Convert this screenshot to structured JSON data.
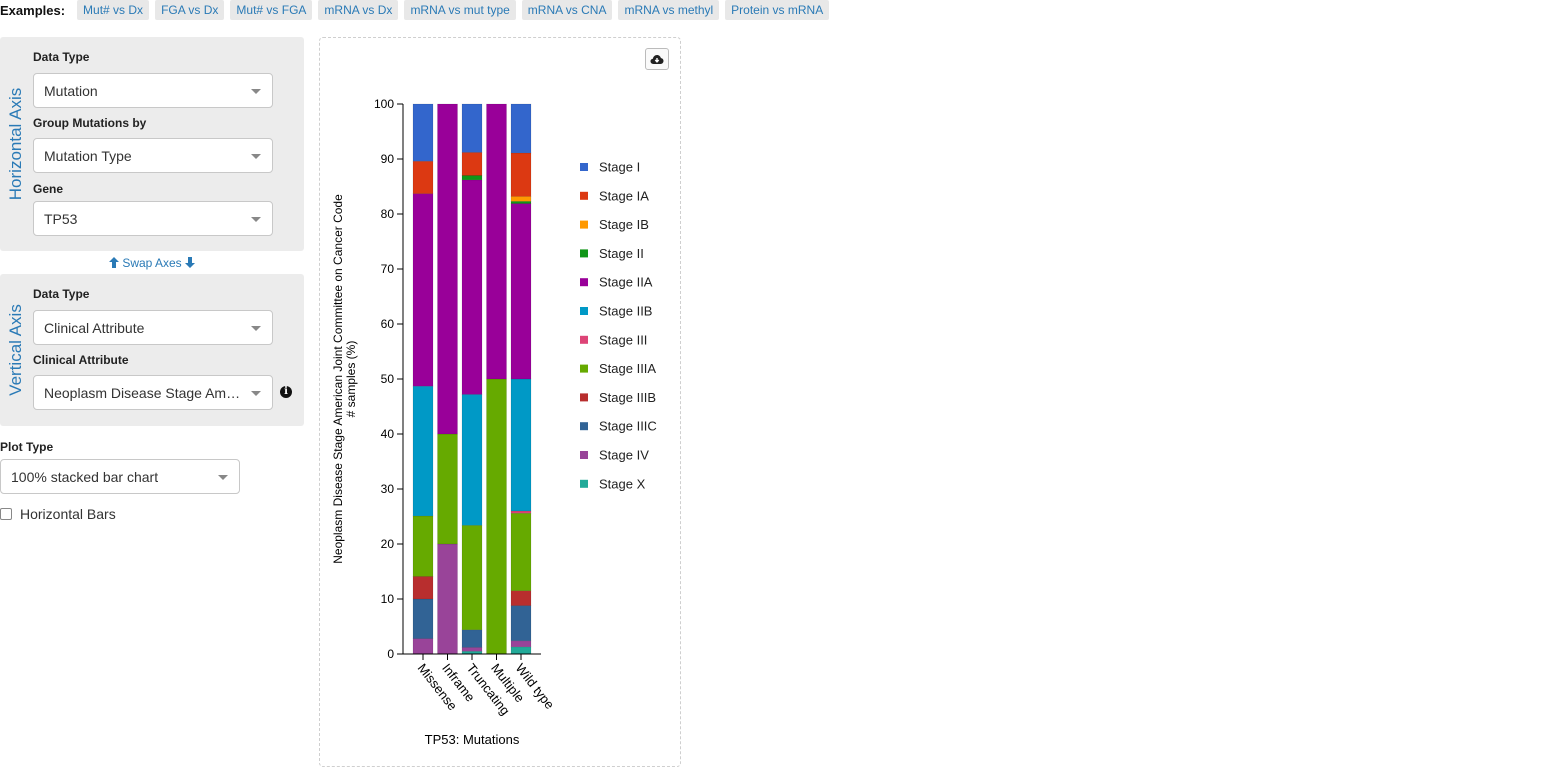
{
  "examples": {
    "label": "Examples:",
    "items": [
      "Mut# vs Dx",
      "FGA vs Dx",
      "Mut# vs FGA",
      "mRNA vs Dx",
      "mRNA vs mut type",
      "mRNA vs CNA",
      "mRNA vs methyl",
      "Protein vs mRNA"
    ]
  },
  "horizontal_axis": {
    "title": "Horizontal Axis",
    "data_type_label": "Data Type",
    "data_type_value": "Mutation",
    "group_label": "Group Mutations by",
    "group_value": "Mutation Type",
    "gene_label": "Gene",
    "gene_value": "TP53"
  },
  "swap_axes": "Swap Axes",
  "vertical_axis": {
    "title": "Vertical Axis",
    "data_type_label": "Data Type",
    "data_type_value": "Clinical Attribute",
    "attribute_label": "Clinical Attribute",
    "attribute_value": "Neoplasm Disease Stage American Joint Committee on Cancer Code"
  },
  "plot_type": {
    "label": "Plot Type",
    "value": "100% stacked bar chart"
  },
  "horizontal_bars_label": "Horizontal Bars",
  "icons": {
    "download": "cloud-download-icon",
    "info": "info-circle-icon",
    "swap_up": "arrow-up-icon",
    "swap_down": "arrow-down-icon"
  },
  "chart_data": {
    "type": "bar",
    "stacked": "100%",
    "categories": [
      "Missense",
      "Inframe",
      "Truncating",
      "Multiple",
      "Wild type"
    ],
    "xlabel": "TP53: Mutations",
    "ylabel": "Neoplasm Disease Stage American Joint Committee on Cancer Code",
    "ylabel2": "# samples (%)",
    "ylim": [
      0,
      100
    ],
    "yticks": [
      0,
      10,
      20,
      30,
      40,
      50,
      60,
      70,
      80,
      90,
      100
    ],
    "legend_position": "right",
    "series": [
      {
        "name": "Stage X",
        "color": "#22aa99",
        "values": [
          0,
          0,
          0.5,
          0,
          1.3
        ]
      },
      {
        "name": "Stage IV",
        "color": "#994499",
        "values": [
          2.8,
          20,
          0.7,
          0,
          1.1
        ]
      },
      {
        "name": "Stage IIIC",
        "color": "#316395",
        "values": [
          7.2,
          0,
          3.2,
          0,
          6.4
        ]
      },
      {
        "name": "Stage IIIB",
        "color": "#b82e2e",
        "values": [
          4.1,
          0,
          0,
          0,
          2.7
        ]
      },
      {
        "name": "Stage IIIA",
        "color": "#66aa00",
        "values": [
          11.0,
          20,
          19.0,
          50,
          14.1
        ]
      },
      {
        "name": "Stage III",
        "color": "#dd4477",
        "values": [
          0,
          0,
          0,
          0,
          0.4
        ]
      },
      {
        "name": "Stage IIB",
        "color": "#0099c6",
        "values": [
          23.6,
          0,
          23.8,
          0,
          24.0
        ]
      },
      {
        "name": "Stage IIA",
        "color": "#990099",
        "values": [
          35.0,
          60,
          39.0,
          50,
          31.9
        ]
      },
      {
        "name": "Stage II",
        "color": "#109618",
        "values": [
          0,
          0,
          0.8,
          0,
          0.4
        ]
      },
      {
        "name": "Stage IB",
        "color": "#ff9900",
        "values": [
          0,
          0,
          0,
          0,
          0.9
        ]
      },
      {
        "name": "Stage IA",
        "color": "#dc3912",
        "values": [
          5.9,
          0,
          4.2,
          0,
          7.9
        ]
      },
      {
        "name": "Stage I",
        "color": "#3366cc",
        "values": [
          10.4,
          0,
          8.8,
          0,
          8.9
        ]
      }
    ],
    "legend_order": [
      "Stage I",
      "Stage IA",
      "Stage IB",
      "Stage II",
      "Stage IIA",
      "Stage IIB",
      "Stage III",
      "Stage IIIA",
      "Stage IIIB",
      "Stage IIIC",
      "Stage IV",
      "Stage X"
    ]
  }
}
